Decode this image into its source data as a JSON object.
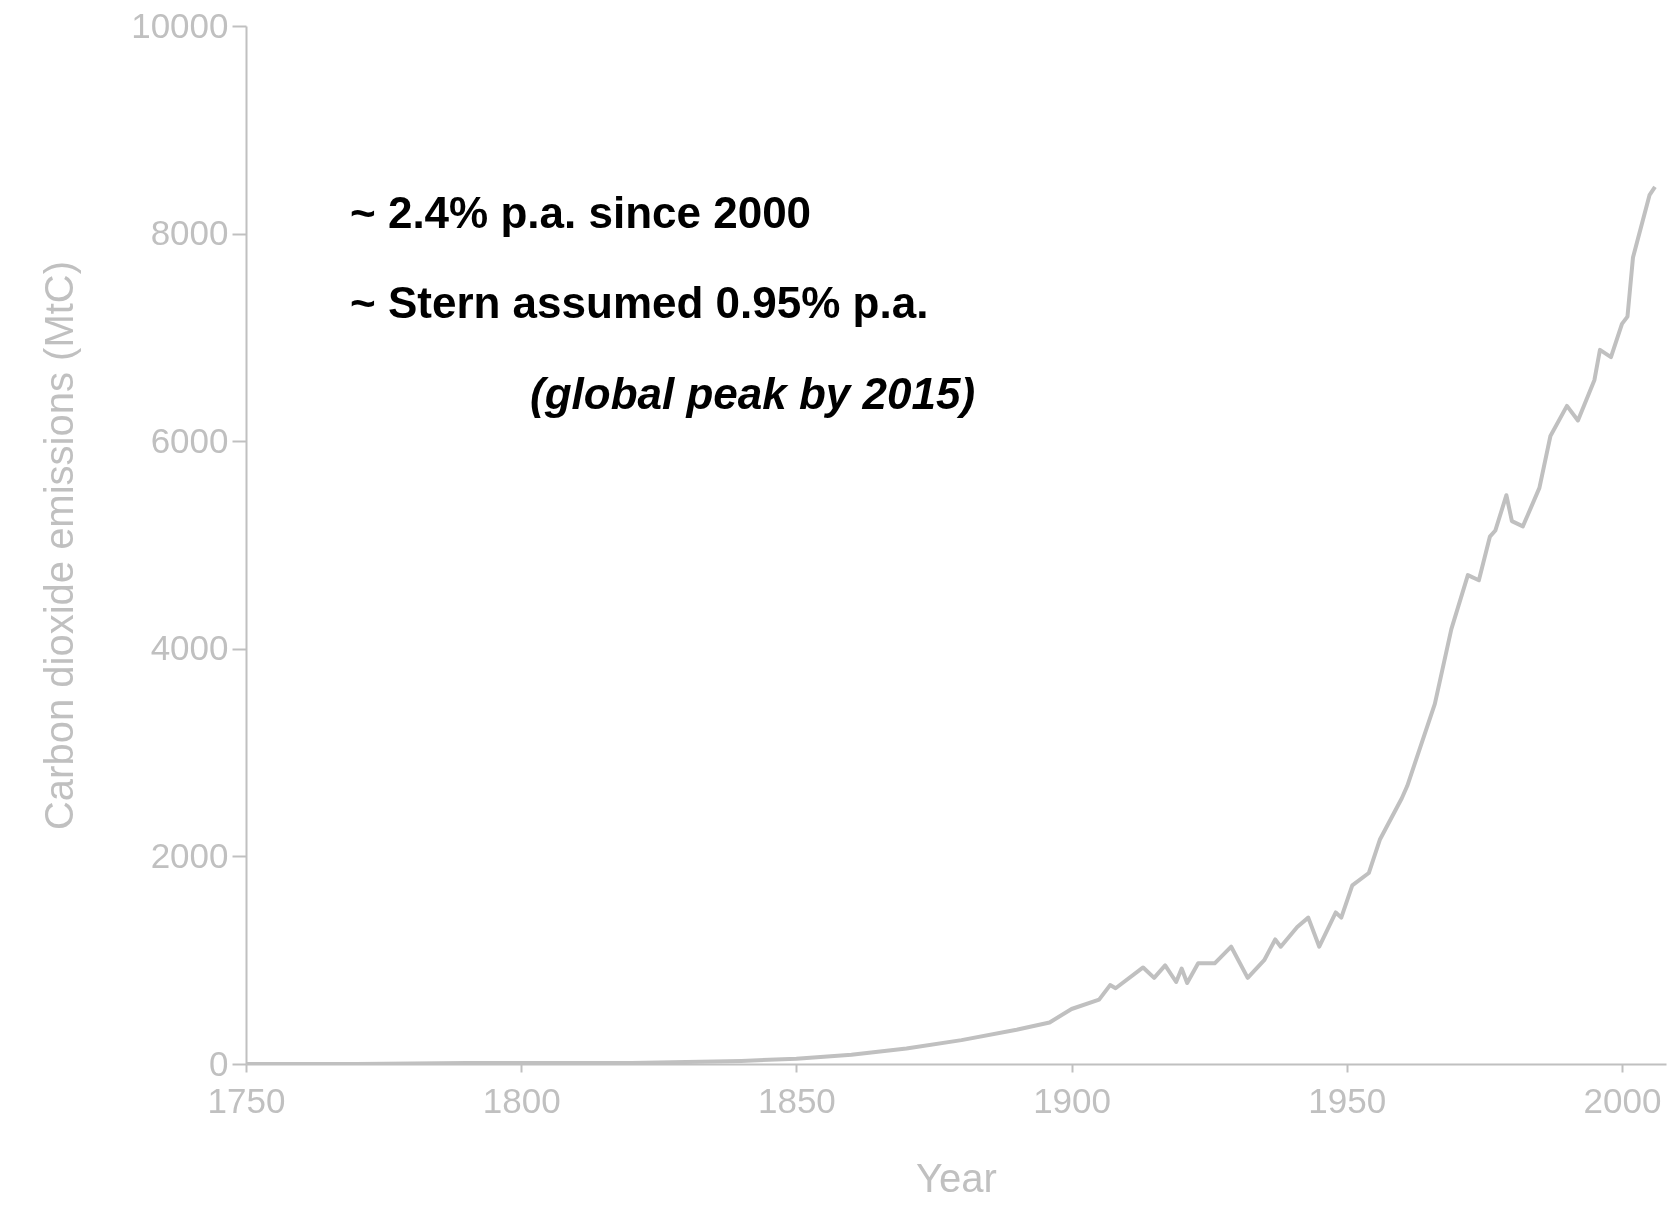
{
  "chart_data": {
    "type": "line",
    "xlabel": "Year",
    "ylabel": "Carbon dioxide emissions (MtC)",
    "annotations": [
      "~ 2.4% p.a. since 2000",
      "~ Stern assumed 0.95% p.a.",
      "(global peak by 2015)"
    ],
    "series": [
      {
        "color": "#c0c0c0",
        "x": [
          1750,
          1770,
          1790,
          1800,
          1820,
          1830,
          1840,
          1850,
          1860,
          1870,
          1880,
          1890,
          1896,
          1900,
          1905,
          1907,
          1908,
          1913,
          1915,
          1917,
          1919,
          1920,
          1921,
          1923,
          1926,
          1929,
          1932,
          1935,
          1937,
          1938,
          1941,
          1943,
          1945,
          1948,
          1949,
          1951,
          1954,
          1956,
          1960,
          1961,
          1966,
          1969,
          1972,
          1974,
          1976,
          1977,
          1979,
          1980,
          1982,
          1985,
          1987,
          1990,
          1992,
          1995,
          1996,
          1998,
          2000,
          2001,
          2002,
          2005,
          2006
        ],
        "values": [
          0,
          0,
          10,
          10,
          10,
          20,
          30,
          50,
          90,
          150,
          230,
          330,
          400,
          530,
          620,
          760,
          730,
          930,
          830,
          950,
          790,
          920,
          780,
          970,
          970,
          1130,
          830,
          1000,
          1200,
          1130,
          1320,
          1410,
          1130,
          1460,
          1410,
          1720,
          1840,
          2160,
          2560,
          2680,
          3470,
          4190,
          4710,
          4660,
          5080,
          5140,
          5480,
          5230,
          5180,
          5550,
          6050,
          6340,
          6200,
          6590,
          6880,
          6810,
          7130,
          7200,
          7770,
          8370,
          8450
        ]
      }
    ],
    "xlim": [
      1750,
      2008
    ],
    "xticks": [
      1750,
      1800,
      1850,
      1900,
      1950,
      2000
    ],
    "ylim": [
      0,
      10000
    ],
    "yticks": [
      0,
      2000,
      4000,
      6000,
      8000,
      10000
    ],
    "grid": false,
    "marker": "none",
    "line_style": "solid"
  }
}
